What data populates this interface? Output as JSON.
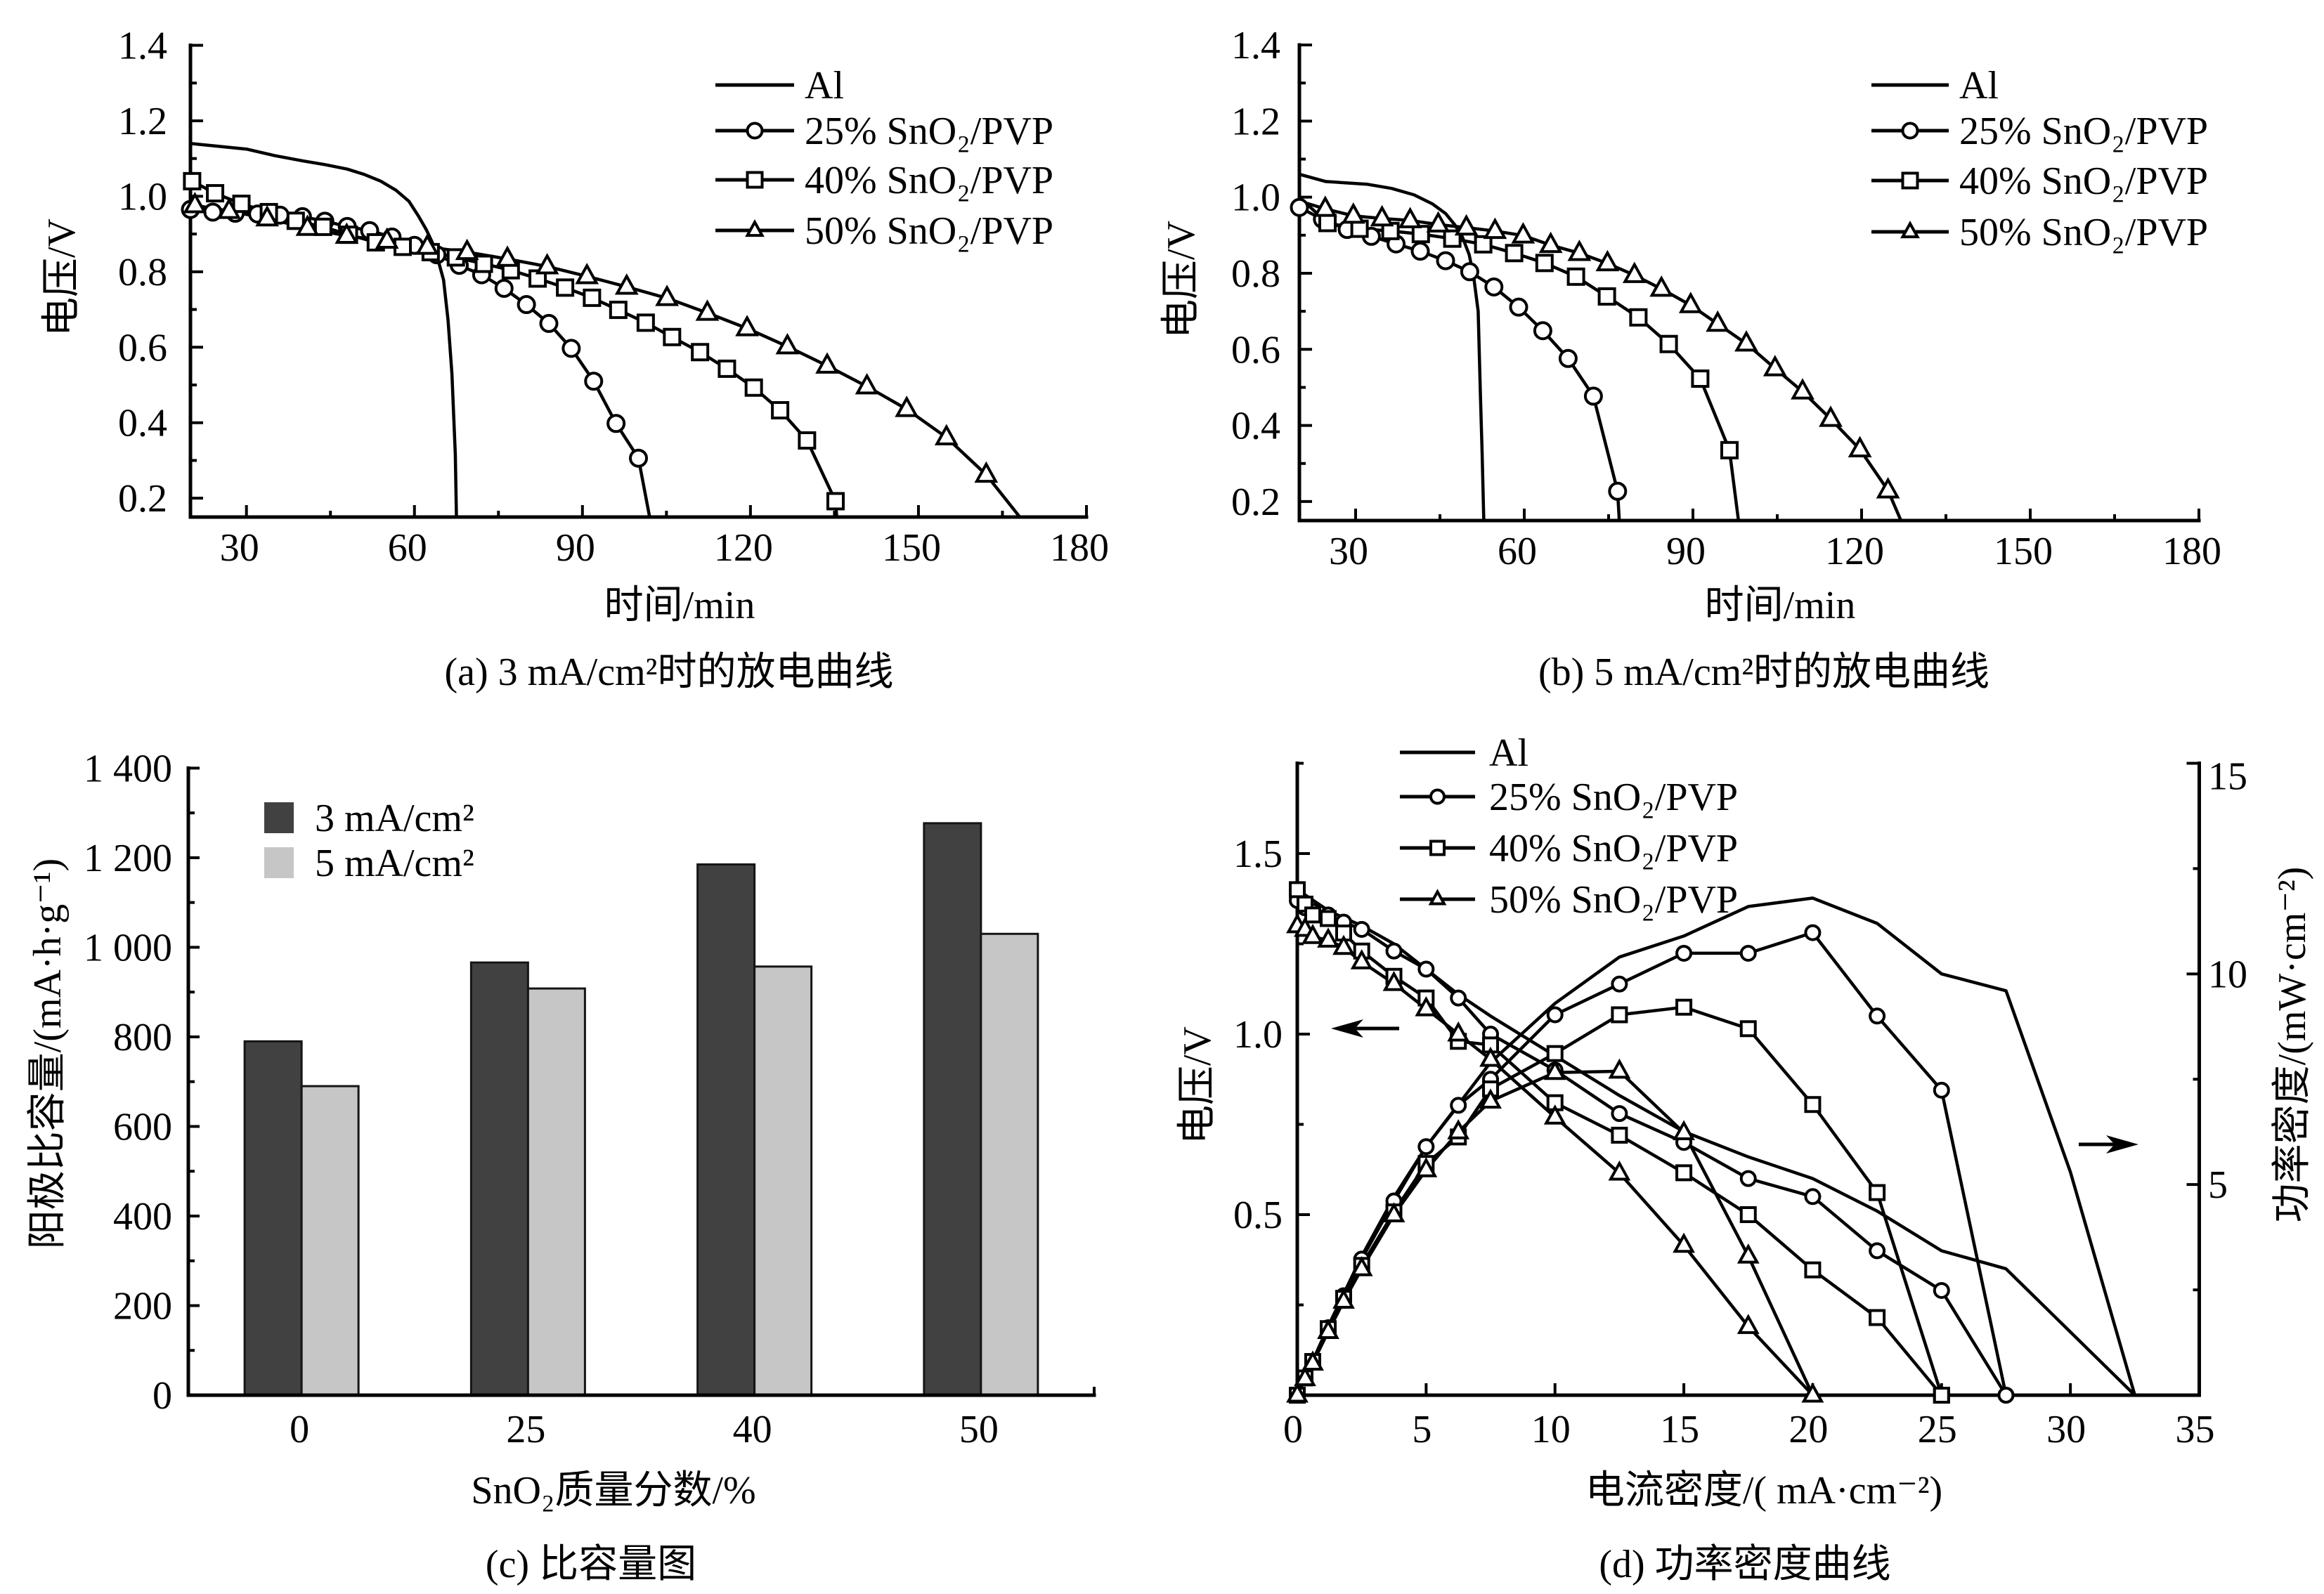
{
  "chart_data": [
    {
      "id": "a",
      "type": "line",
      "title": "(a) 3 mA/cm²时的放电曲线",
      "xlabel": "时间/min",
      "ylabel": "电压/V",
      "xlim": [
        20,
        180
      ],
      "ylim": [
        0.15,
        1.4
      ],
      "grid": false,
      "legend": "top-right",
      "x_ticks": {
        "values": [
          30,
          60,
          90,
          120,
          150,
          180
        ],
        "labels": [
          "30",
          "60",
          "90",
          "120",
          "150",
          "180"
        ],
        "minor": [
          45,
          75,
          105,
          135,
          165
        ]
      },
      "y_ticks": {
        "values": [
          0.2,
          0.4,
          0.6,
          0.8,
          1.0,
          1.2,
          1.4
        ],
        "labels": [
          "0.2",
          "0.4",
          "0.6",
          "0.8",
          "1.0",
          "1.2",
          "1.4"
        ],
        "minor": [
          0.3,
          0.5,
          0.7,
          0.9,
          1.1,
          1.3
        ]
      },
      "series": [
        {
          "name": "Al",
          "marker": "none",
          "x": [
            20,
            30,
            35,
            40,
            44,
            48,
            51,
            54,
            56.7,
            59,
            60.7,
            62.1,
            63.2,
            64.3,
            65.2,
            66,
            66.7,
            67.3,
            67.5
          ],
          "y": [
            1.14,
            1.125,
            1.108,
            1.094,
            1.084,
            1.072,
            1.058,
            1.04,
            1.016,
            0.987,
            0.948,
            0.912,
            0.877,
            0.827,
            0.778,
            0.671,
            0.529,
            0.316,
            0.15
          ]
        },
        {
          "name": "25% SnO₂/PVP",
          "marker": "circle",
          "x": [
            20,
            24,
            28,
            32,
            36,
            40,
            44,
            48,
            52,
            56,
            60,
            64,
            68,
            72,
            76,
            80,
            84,
            88,
            92,
            96,
            100
          ],
          "y": [
            0.965,
            0.958,
            0.955,
            0.953,
            0.95,
            0.946,
            0.934,
            0.92,
            0.909,
            0.892,
            0.87,
            0.845,
            0.817,
            0.792,
            0.756,
            0.713,
            0.663,
            0.597,
            0.51,
            0.398,
            0.306
          ],
          "line_end": [
            102,
            0.15
          ]
        },
        {
          "name": "40% SnO₂/PVP",
          "marker": "square",
          "x": [
            20.3,
            24.4,
            29.1,
            34,
            38.8,
            43.7,
            48.3,
            53.1,
            57.9,
            62.9,
            67.4,
            72.4,
            77.2,
            82,
            86.9,
            91.7,
            96.4,
            101.3,
            106,
            111,
            115.8,
            120.6,
            125.3,
            130.1,
            135.2
          ],
          "y": [
            1.04,
            1.008,
            0.98,
            0.958,
            0.935,
            0.919,
            0.898,
            0.878,
            0.866,
            0.852,
            0.838,
            0.821,
            0.804,
            0.782,
            0.758,
            0.731,
            0.699,
            0.665,
            0.627,
            0.587,
            0.543,
            0.493,
            0.433,
            0.353,
            0.192
          ],
          "line_end": [
            135.4,
            0.15
          ]
        },
        {
          "name": "50% SnO₂/PVP",
          "marker": "triangle",
          "x": [
            20.8,
            26.9,
            33.7,
            40.9,
            47.9,
            55.1,
            62.3,
            69.4,
            76.6,
            83.7,
            90.8,
            97.9,
            105.1,
            112.3,
            119.4,
            126.6,
            133.7,
            140.8,
            147.9,
            155,
            162.1
          ],
          "y": [
            0.976,
            0.961,
            0.941,
            0.916,
            0.895,
            0.882,
            0.866,
            0.852,
            0.834,
            0.814,
            0.788,
            0.76,
            0.73,
            0.691,
            0.65,
            0.602,
            0.551,
            0.496,
            0.436,
            0.361,
            0.262
          ],
          "line_end": [
            168.1,
            0.15
          ]
        }
      ]
    },
    {
      "id": "b",
      "type": "line",
      "title": "(b) 5 mA/cm²时的放电曲线",
      "xlabel": "时间/min",
      "ylabel": "电压/V",
      "xlim": [
        20,
        180
      ],
      "ylim": [
        0.15,
        1.4
      ],
      "grid": false,
      "legend": "top-right",
      "x_ticks": {
        "values": [
          30,
          60,
          90,
          120,
          150,
          180
        ],
        "labels": [
          "30",
          "60",
          "90",
          "120",
          "150",
          "180"
        ],
        "minor": [
          45,
          75,
          105,
          135,
          165
        ]
      },
      "y_ticks": {
        "values": [
          0.2,
          0.4,
          0.6,
          0.8,
          1.0,
          1.2,
          1.4
        ],
        "labels": [
          "0.2",
          "0.4",
          "0.6",
          "0.8",
          "1.0",
          "1.2",
          "1.4"
        ],
        "minor": [
          0.3,
          0.5,
          0.7,
          0.9,
          1.1,
          1.3
        ]
      },
      "series": [
        {
          "name": "Al",
          "marker": "none",
          "x": [
            20,
            24.7,
            32,
            36.4,
            40.4,
            43.7,
            46,
            47.6,
            49,
            50.2,
            51,
            51.8,
            52.2,
            52.5,
            52.8
          ],
          "y": [
            1.06,
            1.041,
            1.034,
            1.023,
            1.006,
            0.982,
            0.957,
            0.928,
            0.895,
            0.849,
            0.791,
            0.7,
            0.48,
            0.33,
            0.15
          ]
        },
        {
          "name": "25% SnO₂/PVP",
          "marker": "circle",
          "x": [
            20,
            24.1,
            28.5,
            32.8,
            37.2,
            41.5,
            46,
            50.3,
            54.6,
            59,
            63.3,
            67.8,
            72.3,
            76.6
          ],
          "y": [
            0.973,
            0.942,
            0.915,
            0.897,
            0.877,
            0.858,
            0.833,
            0.804,
            0.764,
            0.711,
            0.649,
            0.576,
            0.477,
            0.227
          ],
          "line_end": [
            76.9,
            0.15
          ]
        },
        {
          "name": "40% SnO₂/PVP",
          "marker": "square",
          "line_start": [
            20,
            1.0
          ],
          "x": [
            25,
            30.7,
            36.2,
            41.6,
            47.2,
            52.7,
            58.2,
            63.6,
            69.2,
            74.7,
            80.3,
            85.7,
            91.3,
            96.5
          ],
          "y": [
            0.932,
            0.917,
            0.911,
            0.903,
            0.891,
            0.876,
            0.853,
            0.827,
            0.791,
            0.739,
            0.684,
            0.614,
            0.523,
            0.335
          ],
          "line_end": [
            98.1,
            0.15
          ]
        },
        {
          "name": "50% SnO₂/PVP",
          "marker": "triangle",
          "line_start": [
            20,
            0.99
          ],
          "x": [
            24.6,
            29.6,
            34.7,
            39.7,
            44.7,
            49.7,
            54.8,
            59.8,
            64.7,
            69.8,
            74.8,
            79.6,
            84.4,
            89.6,
            94.4,
            99.5,
            104.6,
            109.5,
            114.5,
            119.7,
            124.7
          ],
          "y": [
            0.969,
            0.951,
            0.944,
            0.939,
            0.928,
            0.92,
            0.911,
            0.899,
            0.874,
            0.853,
            0.826,
            0.795,
            0.759,
            0.716,
            0.667,
            0.615,
            0.55,
            0.489,
            0.417,
            0.337,
            0.229
          ],
          "line_end": [
            127,
            0.15
          ]
        }
      ]
    },
    {
      "id": "c",
      "type": "bar",
      "title": "(c) 比容量图",
      "xlabel": "SnO₂质量分数/%",
      "ylabel": "阳极比容量/(mA·h·g⁻¹)",
      "categories": [
        "0",
        "25",
        "40",
        "50"
      ],
      "ylim": [
        0,
        1400
      ],
      "grid": false,
      "legend": "top-left",
      "y_ticks": {
        "values": [
          0,
          200,
          400,
          600,
          800,
          1000,
          1200,
          1400
        ],
        "labels": [
          "0",
          "200",
          "400",
          "600",
          "800",
          "1 000",
          "1 200",
          "1 400"
        ],
        "minor": [
          100,
          300,
          500,
          700,
          900,
          1100,
          1300
        ]
      },
      "series": [
        {
          "name": "3 mA/cm²",
          "color": "#414141",
          "values": [
            790,
            966,
            1185,
            1277
          ]
        },
        {
          "name": "5 mA/cm²",
          "color": "#c6c6c6",
          "values": [
            690,
            908,
            957,
            1030
          ]
        }
      ]
    },
    {
      "id": "d",
      "type": "line",
      "title": "(d) 功率密度曲线",
      "xlabel": "电流密度/( mA·cm⁻²)",
      "ylabel": "电压/V",
      "ylabel_right": "功率密度/(mW·cm⁻²)",
      "xlim": [
        0,
        35
      ],
      "ylim": [
        0,
        1.75
      ],
      "ylim_right": [
        0,
        15
      ],
      "grid": false,
      "legend": "top-left",
      "x_ticks": {
        "values": [
          0,
          5,
          10,
          15,
          20,
          25,
          30,
          35
        ],
        "labels": [
          "0",
          "5",
          "10",
          "15",
          "20",
          "25",
          "30",
          "35"
        ]
      },
      "y_ticks": {
        "values": [
          0.5,
          1.0,
          1.5
        ],
        "labels": [
          "0.5",
          "1.0",
          "1.5"
        ],
        "minor": [
          0.25,
          0.75,
          1.25,
          1.75
        ]
      },
      "y_ticks_right": {
        "values": [
          5,
          10,
          15
        ],
        "labels": [
          "5",
          "10",
          "15"
        ],
        "minor": [
          2.5,
          7.5,
          12.5
        ]
      },
      "annotations": [
        {
          "type": "arrow",
          "direction": "left",
          "meaning": "voltage curves read on left axis"
        },
        {
          "type": "arrow",
          "direction": "right",
          "meaning": "power density curves read on right axis"
        }
      ],
      "series": [
        {
          "name": "Al",
          "marker": "none",
          "voltage": {
            "x": [
              0,
              1.25,
              2.5,
              3.75,
              5,
              6.25,
              7.5,
              10,
              12.5,
              15,
              17.5,
              20,
              22.5,
              25,
              27.5,
              32.5
            ],
            "y": [
              1.4,
              1.34,
              1.3,
              1.25,
              1.18,
              1.11,
              1.05,
              0.94,
              0.83,
              0.73,
              0.66,
              0.6,
              0.51,
              0.4,
              0.35,
              0.0
            ]
          },
          "power": {
            "x": [
              0,
              1.25,
              2.5,
              3.75,
              5,
              6.25,
              7.5,
              10,
              12.5,
              15,
              17.5,
              20,
              22.5,
              25,
              27.5,
              30,
              32.5
            ],
            "y": [
              0,
              1.7,
              3.3,
              4.7,
              5.9,
              6.9,
              7.9,
              9.3,
              10.4,
              10.9,
              11.6,
              11.8,
              11.2,
              10.0,
              9.6,
              5.3,
              0
            ]
          }
        },
        {
          "name": "25% SnO₂/PVP",
          "marker": "circle",
          "voltage": {
            "x": [
              0,
              0.3,
              0.6,
              1.2,
              1.8,
              2.5,
              3.75,
              5,
              6.25,
              7.5,
              10,
              12.5,
              15,
              17.5,
              20,
              22.5,
              25,
              27.5
            ],
            "y": [
              1.37,
              1.35,
              1.34,
              1.33,
              1.31,
              1.29,
              1.23,
              1.18,
              1.1,
              1.0,
              0.9,
              0.78,
              0.7,
              0.6,
              0.55,
              0.4,
              0.29,
              0.0
            ]
          },
          "power": {
            "x": [
              0,
              0.3,
              0.6,
              1.2,
              1.8,
              2.5,
              3.75,
              5,
              6.25,
              7.5,
              10,
              12.5,
              15,
              17.5,
              20,
              22.5,
              25,
              27.5
            ],
            "y": [
              0,
              0.41,
              0.8,
              1.6,
              2.36,
              3.23,
              4.61,
              5.9,
              6.88,
              7.5,
              9.03,
              9.76,
              10.49,
              10.49,
              10.98,
              9.0,
              7.24,
              0
            ]
          }
        },
        {
          "name": "40% SnO₂/PVP",
          "marker": "square",
          "voltage": {
            "x": [
              0,
              0.3,
              0.6,
              1.2,
              1.8,
              2.5,
              3.75,
              5,
              6.25,
              7.5,
              10,
              12.5,
              15,
              17.5,
              20,
              22.5,
              25
            ],
            "y": [
              1.4,
              1.36,
              1.33,
              1.32,
              1.28,
              1.23,
              1.16,
              1.1,
              0.98,
              0.97,
              0.81,
              0.72,
              0.616,
              0.5,
              0.347,
              0.215,
              0.0
            ]
          },
          "power": {
            "x": [
              0,
              0.3,
              0.6,
              1.2,
              1.8,
              2.5,
              3.75,
              5,
              6.25,
              7.5,
              10,
              12.5,
              15,
              17.5,
              20,
              22.5,
              25
            ],
            "y": [
              0,
              0.41,
              0.8,
              1.58,
              2.3,
              3.08,
              4.35,
              5.5,
              6.13,
              7.27,
              8.11,
              9.03,
              9.21,
              8.7,
              6.9,
              4.81,
              0
            ]
          }
        },
        {
          "name": "50% SnO₂/PVP",
          "marker": "triangle",
          "voltage": {
            "x": [
              0,
              0.3,
              0.6,
              1.2,
              1.8,
              2.5,
              3.75,
              5,
              6.25,
              7.5,
              10,
              12.5,
              15,
              17.5,
              20
            ],
            "y": [
              1.3,
              1.29,
              1.27,
              1.26,
              1.24,
              1.2,
              1.14,
              1.07,
              1.0,
              0.93,
              0.77,
              0.615,
              0.415,
              0.19,
              0.0
            ]
          },
          "power": {
            "x": [
              0,
              0.3,
              0.6,
              1.2,
              1.8,
              2.5,
              3.75,
              5,
              6.25,
              7.5,
              10,
              12.5,
              15,
              17.5,
              20
            ],
            "y": [
              0,
              0.39,
              0.76,
              1.51,
              2.23,
              3.0,
              4.28,
              5.35,
              6.25,
              6.98,
              7.66,
              7.69,
              6.23,
              3.3,
              0
            ]
          }
        }
      ]
    }
  ]
}
